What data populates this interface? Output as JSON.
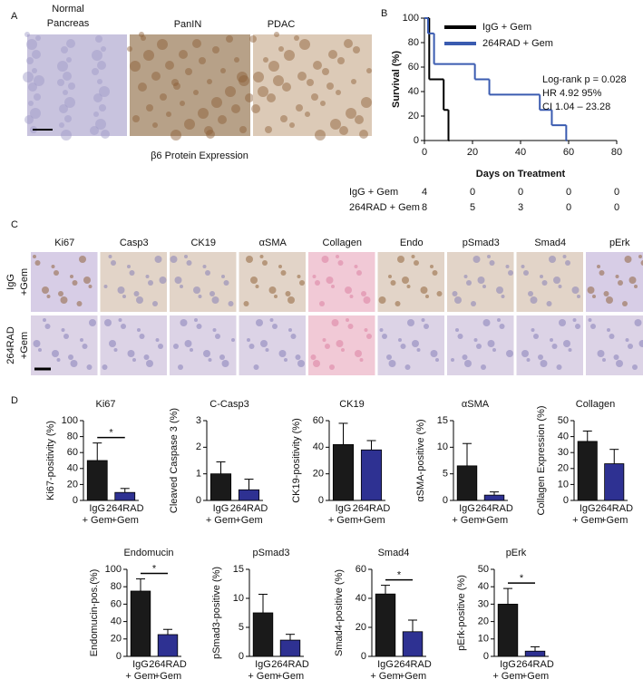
{
  "figure": {
    "panel_labels": [
      "A",
      "B",
      "C",
      "D"
    ],
    "panel_a": {
      "labels": [
        [
          "Normal",
          "Pancreas"
        ],
        [
          "PanIN"
        ],
        [
          "PDAC"
        ]
      ],
      "caption": "β6 Protein Expression"
    },
    "panel_c": {
      "columns": [
        "Ki67",
        "Casp3",
        "CK19",
        "αSMA",
        "Collagen",
        "Endo",
        "pSmad3",
        "Smad4",
        "pErk"
      ],
      "rows": [
        [
          "IgG",
          "+Gem"
        ],
        [
          "264RAD",
          "+Gem"
        ]
      ]
    }
  },
  "chart_data": [
    {
      "type": "step",
      "xlabel": "Days on Treatment",
      "ylabel": "Survival (%)",
      "xlim": [
        0,
        80
      ],
      "ylim": [
        0,
        100
      ],
      "xticks": [
        0,
        20,
        40,
        60,
        80
      ],
      "yticks": [
        0,
        20,
        40,
        60,
        80,
        100
      ],
      "series": [
        {
          "name": "IgG + Gem",
          "color": "#000000",
          "x": [
            0,
            2,
            8,
            10
          ],
          "values": [
            100,
            50,
            25,
            0
          ]
        },
        {
          "name": "264RAD + Gem",
          "color": "#3a5bb0",
          "x": [
            0,
            1.5,
            4,
            21,
            27,
            48,
            53,
            59
          ],
          "values": [
            100,
            87.5,
            62.5,
            50,
            37.5,
            25,
            12.5,
            0
          ]
        }
      ],
      "annotations": [
        "Log-rank p = 0.028",
        "HR 4.92 95%",
        "CI 1.04 – 23.28"
      ],
      "risk_table": [
        {
          "name": "IgG + Gem",
          "values": [
            4,
            0,
            0,
            0,
            0
          ]
        },
        {
          "name": "264RAD + Gem",
          "values": [
            8,
            5,
            3,
            0,
            0
          ]
        }
      ]
    },
    {
      "type": "bar",
      "title": "Ki67",
      "ylabel": "Ki67-positivity (%)",
      "categories": [
        "IgG\n+ Gem",
        "264RAD\n+Gem"
      ],
      "values": [
        50,
        10
      ],
      "errors": [
        22,
        5
      ],
      "colors": [
        "#1a1a1a",
        "#2e3192"
      ],
      "ylim": [
        0,
        100
      ],
      "yticks": [
        0,
        20,
        40,
        60,
        80,
        100
      ],
      "annotation": "*"
    },
    {
      "type": "bar",
      "title": "C-Casp3",
      "ylabel": "Cleaved Caspase 3 (%)",
      "categories": [
        "IgG\n+ Gem",
        "264RAD\n+Gem"
      ],
      "values": [
        1.0,
        0.4
      ],
      "errors": [
        0.45,
        0.4
      ],
      "colors": [
        "#1a1a1a",
        "#2e3192"
      ],
      "ylim": [
        0,
        3
      ],
      "yticks": [
        0,
        1,
        2,
        3
      ]
    },
    {
      "type": "bar",
      "title": "CK19",
      "ylabel": "CK19-positivity (%)",
      "categories": [
        "IgG\n+ Gem",
        "264RAD\n+Gem"
      ],
      "values": [
        42,
        38
      ],
      "errors": [
        16,
        7
      ],
      "colors": [
        "#1a1a1a",
        "#2e3192"
      ],
      "ylim": [
        0,
        60
      ],
      "yticks": [
        0,
        20,
        40,
        60
      ]
    },
    {
      "type": "bar",
      "title": "αSMA",
      "ylabel": "αSMA-positive (%)",
      "categories": [
        "IgG\n+ Gem",
        "264RAD\n+Gem"
      ],
      "values": [
        6.5,
        1
      ],
      "errors": [
        4.2,
        0.6
      ],
      "colors": [
        "#1a1a1a",
        "#2e3192"
      ],
      "ylim": [
        0,
        15
      ],
      "yticks": [
        0,
        5,
        10,
        15
      ]
    },
    {
      "type": "bar",
      "title": "Collagen",
      "ylabel": "Collagen Expression (%)",
      "categories": [
        "IgG\n+ Gem",
        "264RAD\n+Gem"
      ],
      "values": [
        37,
        23
      ],
      "errors": [
        6.5,
        9
      ],
      "colors": [
        "#1a1a1a",
        "#2e3192"
      ],
      "ylim": [
        0,
        50
      ],
      "yticks": [
        0,
        10,
        20,
        30,
        40,
        50
      ]
    },
    {
      "type": "bar",
      "title": "Endomucin",
      "ylabel": "Endomucin-pos.(%)",
      "categories": [
        "IgG\n+ Gem",
        "264RAD\n+Gem"
      ],
      "values": [
        75,
        25
      ],
      "errors": [
        14,
        6
      ],
      "colors": [
        "#1a1a1a",
        "#2e3192"
      ],
      "ylim": [
        0,
        100
      ],
      "yticks": [
        0,
        20,
        40,
        60,
        80,
        100
      ],
      "annotation": "*"
    },
    {
      "type": "bar",
      "title": "pSmad3",
      "ylabel": "pSmad3-positive (%)",
      "categories": [
        "IgG\n+ Gem",
        "264RAD\n+Gem"
      ],
      "values": [
        7.5,
        2.8
      ],
      "errors": [
        3.2,
        1
      ],
      "colors": [
        "#1a1a1a",
        "#2e3192"
      ],
      "ylim": [
        0,
        15
      ],
      "yticks": [
        0,
        5,
        10,
        15
      ]
    },
    {
      "type": "bar",
      "title": "Smad4",
      "ylabel": "Smad4-positive (%)",
      "categories": [
        "IgG\n+ Gem",
        "264RAD\n+Gem"
      ],
      "values": [
        43,
        17
      ],
      "errors": [
        6,
        8
      ],
      "colors": [
        "#1a1a1a",
        "#2e3192"
      ],
      "ylim": [
        0,
        60
      ],
      "yticks": [
        0,
        20,
        40,
        60
      ],
      "annotation": "*"
    },
    {
      "type": "bar",
      "title": "pErk",
      "ylabel": "pErk-positive (%)",
      "categories": [
        "IgG\n+ Gem",
        "264RAD\n+Gem"
      ],
      "values": [
        30,
        3
      ],
      "errors": [
        9,
        2.5
      ],
      "colors": [
        "#1a1a1a",
        "#2e3192"
      ],
      "ylim": [
        0,
        50
      ],
      "yticks": [
        0,
        10,
        20,
        30,
        40,
        50
      ],
      "annotation": "*"
    }
  ]
}
